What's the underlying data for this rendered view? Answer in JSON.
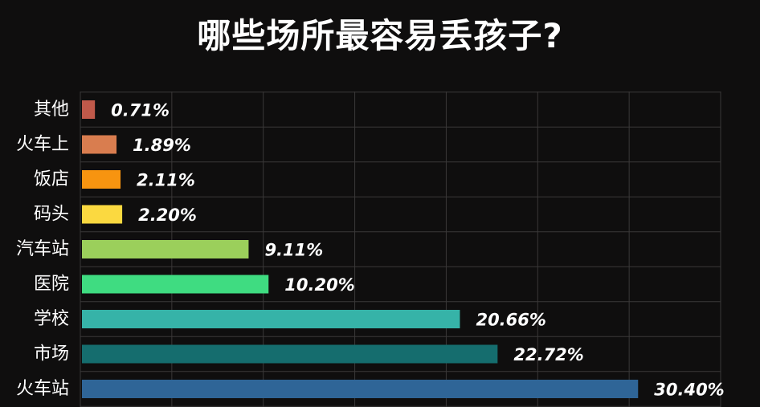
{
  "chart_data": {
    "type": "bar",
    "orientation": "horizontal",
    "title": "哪些场所最容易丢孩子?",
    "categories": [
      "其他",
      "火车上",
      "饭店",
      "码头",
      "汽车站",
      "医院",
      "学校",
      "市场",
      "火车站"
    ],
    "values": [
      0.71,
      1.89,
      2.11,
      2.2,
      9.11,
      10.2,
      20.66,
      22.72,
      30.4
    ],
    "value_labels": [
      "0.71%",
      "1.89%",
      "2.11%",
      "2.20%",
      "9.11%",
      "10.20%",
      "20.66%",
      "22.72%",
      "30.40%"
    ],
    "colors": [
      "#c0594a",
      "#d97d4f",
      "#f79410",
      "#fbd940",
      "#9bcf5b",
      "#3fdc81",
      "#36b3a8",
      "#156d6e",
      "#2f6597"
    ],
    "xlim": [
      0,
      35
    ],
    "grid": true,
    "legend": "none"
  }
}
